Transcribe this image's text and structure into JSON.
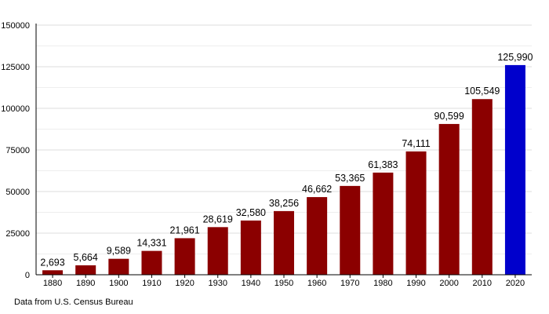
{
  "chart_data": {
    "type": "bar",
    "title": "",
    "xlabel": "",
    "ylabel": "",
    "categories": [
      "1880",
      "1890",
      "1900",
      "1910",
      "1920",
      "1930",
      "1940",
      "1950",
      "1960",
      "1970",
      "1980",
      "1990",
      "2000",
      "2010",
      "2020"
    ],
    "values": [
      2693,
      5664,
      9589,
      14331,
      21961,
      28619,
      32580,
      38256,
      46662,
      53365,
      61383,
      74111,
      90599,
      105549,
      125990
    ],
    "value_labels": [
      "2,693",
      "5,664",
      "9,589",
      "14,331",
      "21,961",
      "28,619",
      "32,580",
      "38,256",
      "46,662",
      "53,365",
      "61,383",
      "74,111",
      "90,599",
      "105,549",
      "125,990"
    ],
    "ylim": [
      0,
      150000
    ],
    "y_ticks": [
      "0",
      "25000",
      "50000",
      "75000",
      "100000",
      "125000",
      "150000"
    ],
    "grid": true,
    "colors": {
      "default_bar": "#8b0000",
      "highlight_bar": "#0000cc",
      "grid": "#dddddd"
    },
    "highlight_index": 14
  },
  "footer": {
    "source": "Data from U.S. Census Bureau"
  }
}
